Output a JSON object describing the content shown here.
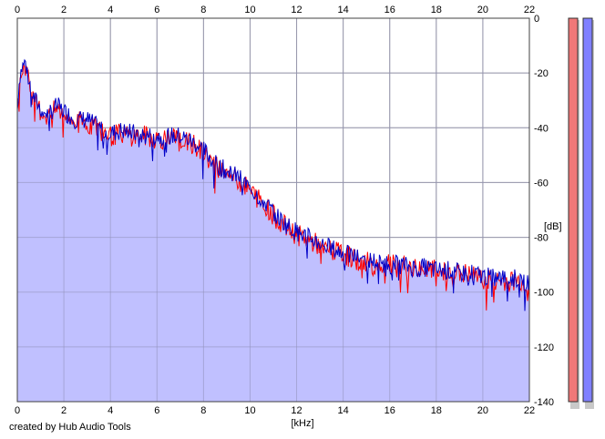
{
  "credit": "created by Hub Audio Tools",
  "chart_data": {
    "type": "area",
    "title": "",
    "xlabel": "[kHz]",
    "ylabel": "[dB]",
    "xlim": [
      0,
      22
    ],
    "ylim": [
      -140,
      0
    ],
    "x_ticks": [
      0,
      2,
      4,
      6,
      8,
      10,
      12,
      14,
      16,
      18,
      20,
      22
    ],
    "y_ticks": [
      0,
      -20,
      -40,
      -60,
      -80,
      -100,
      -120,
      -140
    ],
    "grid": true,
    "series": [
      {
        "color": "#ff0000",
        "points": [
          [
            0.0,
            -34
          ],
          [
            0.1,
            -22
          ],
          [
            0.2,
            -19
          ],
          [
            0.35,
            -17
          ],
          [
            0.5,
            -24
          ],
          [
            0.7,
            -30
          ],
          [
            1.0,
            -34
          ],
          [
            1.3,
            -36
          ],
          [
            1.7,
            -33
          ],
          [
            2.0,
            -35
          ],
          [
            2.5,
            -38
          ],
          [
            3.0,
            -38
          ],
          [
            3.5,
            -40
          ],
          [
            4.0,
            -43
          ],
          [
            4.5,
            -42
          ],
          [
            5.0,
            -43
          ],
          [
            5.5,
            -43
          ],
          [
            6.0,
            -44
          ],
          [
            6.5,
            -44
          ],
          [
            7.0,
            -44
          ],
          [
            7.5,
            -46
          ],
          [
            8.0,
            -49
          ],
          [
            8.5,
            -54
          ],
          [
            9.0,
            -56
          ],
          [
            9.5,
            -59
          ],
          [
            10.0,
            -63
          ],
          [
            10.5,
            -67
          ],
          [
            11.0,
            -72
          ],
          [
            11.5,
            -76
          ],
          [
            12.0,
            -79
          ],
          [
            12.5,
            -81
          ],
          [
            13.0,
            -83
          ],
          [
            13.5,
            -85
          ],
          [
            14.0,
            -86
          ],
          [
            14.5,
            -88
          ],
          [
            15.0,
            -89
          ],
          [
            15.5,
            -90
          ],
          [
            16.0,
            -90
          ],
          [
            16.5,
            -91
          ],
          [
            17.0,
            -91
          ],
          [
            17.5,
            -92
          ],
          [
            18.0,
            -92
          ],
          [
            18.5,
            -93
          ],
          [
            19.0,
            -93
          ],
          [
            19.5,
            -94
          ],
          [
            20.0,
            -95
          ],
          [
            20.5,
            -96
          ],
          [
            21.0,
            -96
          ],
          [
            21.5,
            -96
          ],
          [
            22.0,
            -97
          ]
        ]
      },
      {
        "color": "#0000c8",
        "fill": "#c0c0ff",
        "points": [
          [
            0.0,
            -33
          ],
          [
            0.1,
            -21
          ],
          [
            0.2,
            -18
          ],
          [
            0.35,
            -16
          ],
          [
            0.5,
            -23
          ],
          [
            0.7,
            -29
          ],
          [
            1.0,
            -33
          ],
          [
            1.3,
            -35
          ],
          [
            1.7,
            -32
          ],
          [
            2.0,
            -34
          ],
          [
            2.5,
            -37
          ],
          [
            3.0,
            -37
          ],
          [
            3.5,
            -40
          ],
          [
            4.0,
            -42
          ],
          [
            4.5,
            -41
          ],
          [
            5.0,
            -42
          ],
          [
            5.5,
            -43
          ],
          [
            6.0,
            -43
          ],
          [
            6.5,
            -43
          ],
          [
            7.0,
            -43
          ],
          [
            7.5,
            -45
          ],
          [
            8.0,
            -48
          ],
          [
            8.5,
            -53
          ],
          [
            9.0,
            -56
          ],
          [
            9.5,
            -58
          ],
          [
            10.0,
            -62
          ],
          [
            10.5,
            -66
          ],
          [
            11.0,
            -71
          ],
          [
            11.5,
            -75
          ],
          [
            12.0,
            -78
          ],
          [
            12.5,
            -80
          ],
          [
            13.0,
            -82
          ],
          [
            13.5,
            -84
          ],
          [
            14.0,
            -86
          ],
          [
            14.5,
            -87
          ],
          [
            15.0,
            -88
          ],
          [
            15.5,
            -89
          ],
          [
            16.0,
            -90
          ],
          [
            16.5,
            -90
          ],
          [
            17.0,
            -91
          ],
          [
            17.5,
            -91
          ],
          [
            18.0,
            -92
          ],
          [
            18.5,
            -92
          ],
          [
            19.0,
            -93
          ],
          [
            19.5,
            -93
          ],
          [
            20.0,
            -94
          ],
          [
            20.5,
            -95
          ],
          [
            21.0,
            -95
          ],
          [
            21.5,
            -95
          ],
          [
            22.0,
            -96
          ]
        ]
      }
    ],
    "level_meters": [
      {
        "color": "#f07878"
      },
      {
        "color": "#8080ff"
      }
    ]
  }
}
